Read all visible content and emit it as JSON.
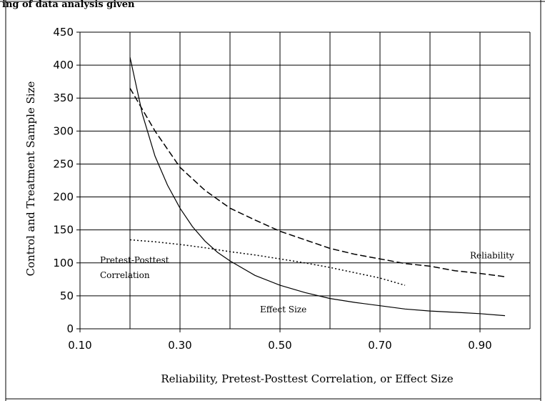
{
  "header_fragment": "ing of data analysis given",
  "chart_data": {
    "type": "line",
    "title": "",
    "xlabel": "Reliability, Pretest-Posttest Correlation, or Effect Size",
    "ylabel": "Control and Treatment Sample Size",
    "xlim": [
      0.1,
      1.0
    ],
    "ylim": [
      0,
      450
    ],
    "x_ticks": [
      "0.10",
      "0.30",
      "0.50",
      "0.70",
      "0.90"
    ],
    "x_tick_values": [
      0.1,
      0.3,
      0.5,
      0.7,
      0.9
    ],
    "y_ticks": [
      "0",
      "50",
      "100",
      "150",
      "200",
      "250",
      "300",
      "350",
      "400",
      "450"
    ],
    "y_tick_values": [
      0,
      50,
      100,
      150,
      200,
      250,
      300,
      350,
      400,
      450
    ],
    "x_gridlines": [
      0.2,
      0.3,
      0.4,
      0.5,
      0.6,
      0.7,
      0.8,
      0.9
    ],
    "grid": true,
    "legend": "none",
    "series": [
      {
        "name": "Reliability",
        "style": "dashed",
        "x": [
          0.2,
          0.25,
          0.3,
          0.35,
          0.4,
          0.45,
          0.5,
          0.55,
          0.6,
          0.65,
          0.7,
          0.75,
          0.8,
          0.85,
          0.9,
          0.95
        ],
        "values": [
          365,
          300,
          245,
          210,
          183,
          165,
          148,
          135,
          122,
          113,
          106,
          99,
          95,
          88,
          84,
          79
        ]
      },
      {
        "name": "Pretest-Posttest Correlation",
        "style": "dotted",
        "x": [
          0.2,
          0.25,
          0.3,
          0.35,
          0.4,
          0.45,
          0.5,
          0.55,
          0.6,
          0.65,
          0.7,
          0.75
        ],
        "values": [
          135,
          132,
          128,
          123,
          117,
          112,
          106,
          100,
          93,
          85,
          77,
          66
        ]
      },
      {
        "name": "Effect Size",
        "style": "solid",
        "x": [
          0.2,
          0.225,
          0.25,
          0.275,
          0.3,
          0.325,
          0.35,
          0.375,
          0.4,
          0.45,
          0.5,
          0.55,
          0.6,
          0.65,
          0.7,
          0.75,
          0.8,
          0.85,
          0.9,
          0.95
        ],
        "values": [
          412,
          325,
          262,
          218,
          183,
          155,
          133,
          116,
          103,
          81,
          66,
          55,
          46,
          40,
          35,
          30,
          27,
          25,
          23,
          20
        ]
      }
    ],
    "annotations": [
      {
        "text": "Reliability",
        "x": 0.88,
        "y": 107
      },
      {
        "text": "Pretest-Posttest",
        "x": 0.14,
        "y": 100
      },
      {
        "text": "Correlation",
        "x": 0.14,
        "y": 77
      },
      {
        "text": "Effect Size",
        "x": 0.46,
        "y": 25
      }
    ]
  }
}
